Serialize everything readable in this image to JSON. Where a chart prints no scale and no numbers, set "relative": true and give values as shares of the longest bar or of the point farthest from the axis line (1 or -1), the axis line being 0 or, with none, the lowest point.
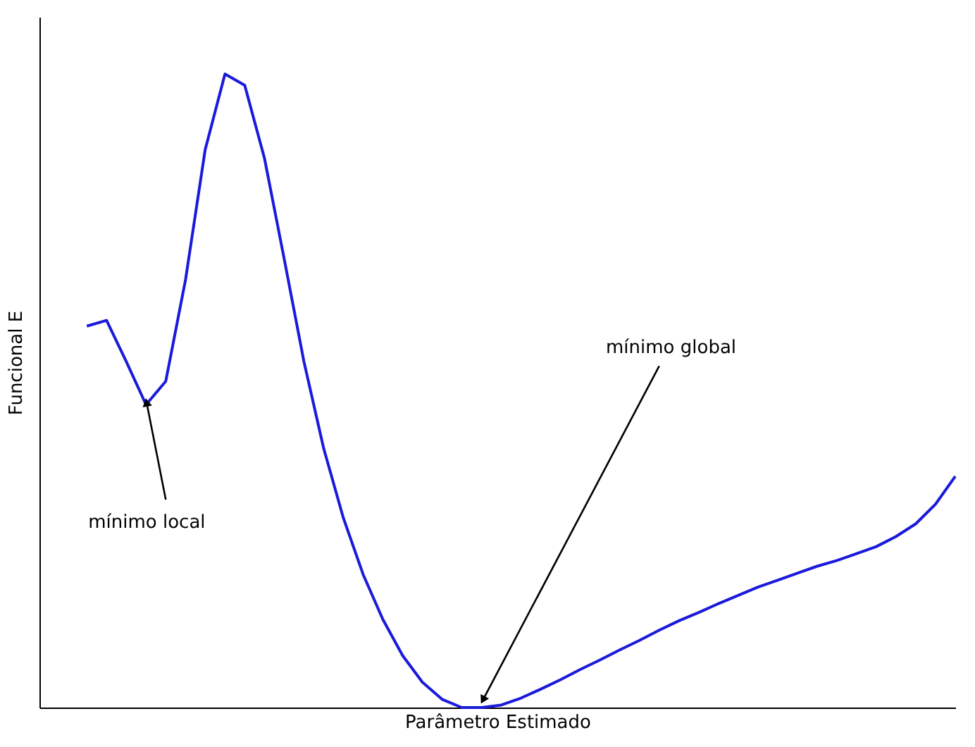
{
  "chart_data": {
    "type": "line",
    "relative": true,
    "xlabel": "Parâmetro Estimado",
    "ylabel": "Funcional E",
    "color": "#1a1adb",
    "marker": "none",
    "grid": false,
    "tick_labels": false,
    "categories": [
      null,
      null,
      null,
      null,
      null,
      null,
      null,
      null,
      null,
      null,
      null,
      null,
      null,
      null,
      null,
      null,
      null,
      null,
      null,
      null,
      null,
      null,
      null,
      null,
      null,
      null,
      null,
      null,
      null,
      null,
      null,
      null,
      null,
      null,
      null,
      null,
      null,
      null,
      null,
      null,
      null,
      null,
      null,
      null,
      null
    ],
    "values": [
      0.602,
      0.611,
      0.546,
      0.478,
      0.515,
      0.675,
      0.881,
      1.0,
      0.982,
      0.867,
      0.708,
      0.546,
      0.409,
      0.299,
      0.21,
      0.139,
      0.082,
      0.04,
      0.013,
      0.0,
      0.0,
      0.004,
      0.015,
      0.029,
      0.044,
      0.06,
      0.075,
      0.091,
      0.106,
      0.122,
      0.137,
      0.15,
      0.164,
      0.177,
      0.19,
      0.201,
      0.212,
      0.223,
      0.232,
      0.243,
      0.254,
      0.27,
      0.29,
      0.321,
      0.365
    ],
    "annotations": [
      "mínimo local",
      "mínimo global"
    ]
  }
}
